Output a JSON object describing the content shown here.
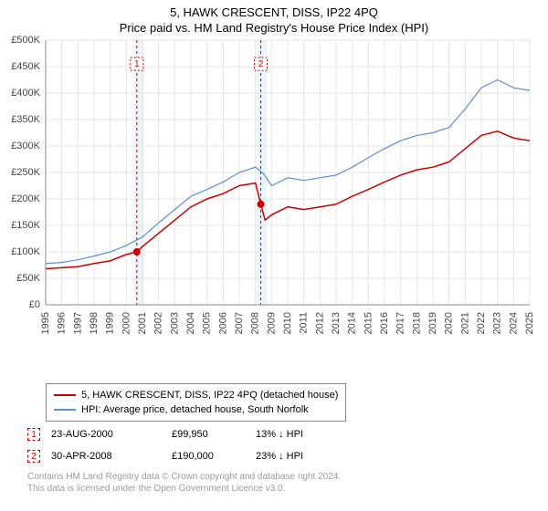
{
  "title": "5, HAWK CRESCENT, DISS, IP22 4PQ",
  "subtitle": "Price paid vs. HM Land Registry's House Price Index (HPI)",
  "chart": {
    "type": "line",
    "background_color": "#ffffff",
    "grid_color": "#e5e5e5",
    "axis_color": "#888888",
    "label_color": "#444444",
    "label_fontsize": 11,
    "ylim": [
      0,
      500000
    ],
    "ytick_step": 50000,
    "ytick_prefix": "£",
    "xlim": [
      1995,
      2025
    ],
    "xtick_step": 1,
    "x_ticks": [
      1995,
      1996,
      1997,
      1998,
      1999,
      2000,
      2001,
      2002,
      2003,
      2004,
      2005,
      2006,
      2007,
      2008,
      2009,
      2010,
      2011,
      2012,
      2013,
      2014,
      2015,
      2016,
      2017,
      2018,
      2019,
      2020,
      2021,
      2022,
      2023,
      2024,
      2025
    ],
    "highlight_bands": [
      {
        "x_from": 2000.5,
        "x_to": 2001.1,
        "fill": "#eaf2fa"
      },
      {
        "x_from": 2008.1,
        "x_to": 2008.7,
        "fill": "#eaf2fa"
      }
    ],
    "markers": [
      {
        "id": "1",
        "x": 2000.65,
        "y_label": 455000,
        "color": "#cc0000"
      },
      {
        "id": "2",
        "x": 2008.33,
        "y_label": 455000,
        "color": "#cc0000"
      }
    ],
    "series": [
      {
        "name": "5, HAWK CRESCENT, DISS, IP22 4PQ (detached house)",
        "color": "#cc0000",
        "line_width": 1.5,
        "data": [
          [
            1995,
            68000
          ],
          [
            1996,
            70000
          ],
          [
            1997,
            72000
          ],
          [
            1998,
            78000
          ],
          [
            1999,
            83000
          ],
          [
            2000,
            95000
          ],
          [
            2000.65,
            99950
          ],
          [
            2001,
            110000
          ],
          [
            2002,
            135000
          ],
          [
            2003,
            160000
          ],
          [
            2004,
            185000
          ],
          [
            2005,
            200000
          ],
          [
            2006,
            210000
          ],
          [
            2007,
            225000
          ],
          [
            2008,
            230000
          ],
          [
            2008.33,
            190000
          ],
          [
            2008.6,
            160000
          ],
          [
            2009,
            170000
          ],
          [
            2010,
            185000
          ],
          [
            2011,
            180000
          ],
          [
            2012,
            185000
          ],
          [
            2013,
            190000
          ],
          [
            2014,
            205000
          ],
          [
            2015,
            218000
          ],
          [
            2016,
            232000
          ],
          [
            2017,
            245000
          ],
          [
            2018,
            255000
          ],
          [
            2019,
            260000
          ],
          [
            2020,
            270000
          ],
          [
            2021,
            295000
          ],
          [
            2022,
            320000
          ],
          [
            2023,
            328000
          ],
          [
            2024,
            315000
          ],
          [
            2025,
            310000
          ]
        ],
        "point_markers": [
          {
            "x": 2000.65,
            "y": 99950,
            "radius": 4,
            "fill": "#cc0000"
          },
          {
            "x": 2008.33,
            "y": 190000,
            "radius": 4,
            "fill": "#cc0000"
          }
        ]
      },
      {
        "name": "HPI: Average price, detached house, South Norfolk",
        "color": "#5b8fd6",
        "line_width": 1.2,
        "data": [
          [
            1995,
            78000
          ],
          [
            1996,
            80000
          ],
          [
            1997,
            85000
          ],
          [
            1998,
            92000
          ],
          [
            1999,
            100000
          ],
          [
            2000,
            112000
          ],
          [
            2001,
            128000
          ],
          [
            2002,
            155000
          ],
          [
            2003,
            180000
          ],
          [
            2004,
            205000
          ],
          [
            2005,
            218000
          ],
          [
            2006,
            232000
          ],
          [
            2007,
            250000
          ],
          [
            2008,
            260000
          ],
          [
            2008.5,
            248000
          ],
          [
            2009,
            225000
          ],
          [
            2010,
            240000
          ],
          [
            2011,
            235000
          ],
          [
            2012,
            240000
          ],
          [
            2013,
            245000
          ],
          [
            2014,
            260000
          ],
          [
            2015,
            278000
          ],
          [
            2016,
            295000
          ],
          [
            2017,
            310000
          ],
          [
            2018,
            320000
          ],
          [
            2019,
            325000
          ],
          [
            2020,
            335000
          ],
          [
            2021,
            370000
          ],
          [
            2022,
            410000
          ],
          [
            2023,
            425000
          ],
          [
            2024,
            410000
          ],
          [
            2025,
            405000
          ]
        ]
      }
    ]
  },
  "legend": {
    "border_color": "#888888",
    "items": [
      {
        "color": "#cc0000",
        "label": "5, HAWK CRESCENT, DISS, IP22 4PQ (detached house)"
      },
      {
        "color": "#5b8fd6",
        "label": "HPI: Average price, detached house, South Norfolk"
      }
    ]
  },
  "data_points": [
    {
      "id": "1",
      "color": "#cc0000",
      "date": "23-AUG-2000",
      "price": "£99,950",
      "diff": "13% ↓ HPI"
    },
    {
      "id": "2",
      "color": "#cc0000",
      "date": "30-APR-2008",
      "price": "£190,000",
      "diff": "23% ↓ HPI"
    }
  ],
  "footer": {
    "line1": "Contains HM Land Registry data © Crown copyright and database right 2024.",
    "line2": "This data is licensed under the Open Government Licence v3.0."
  }
}
